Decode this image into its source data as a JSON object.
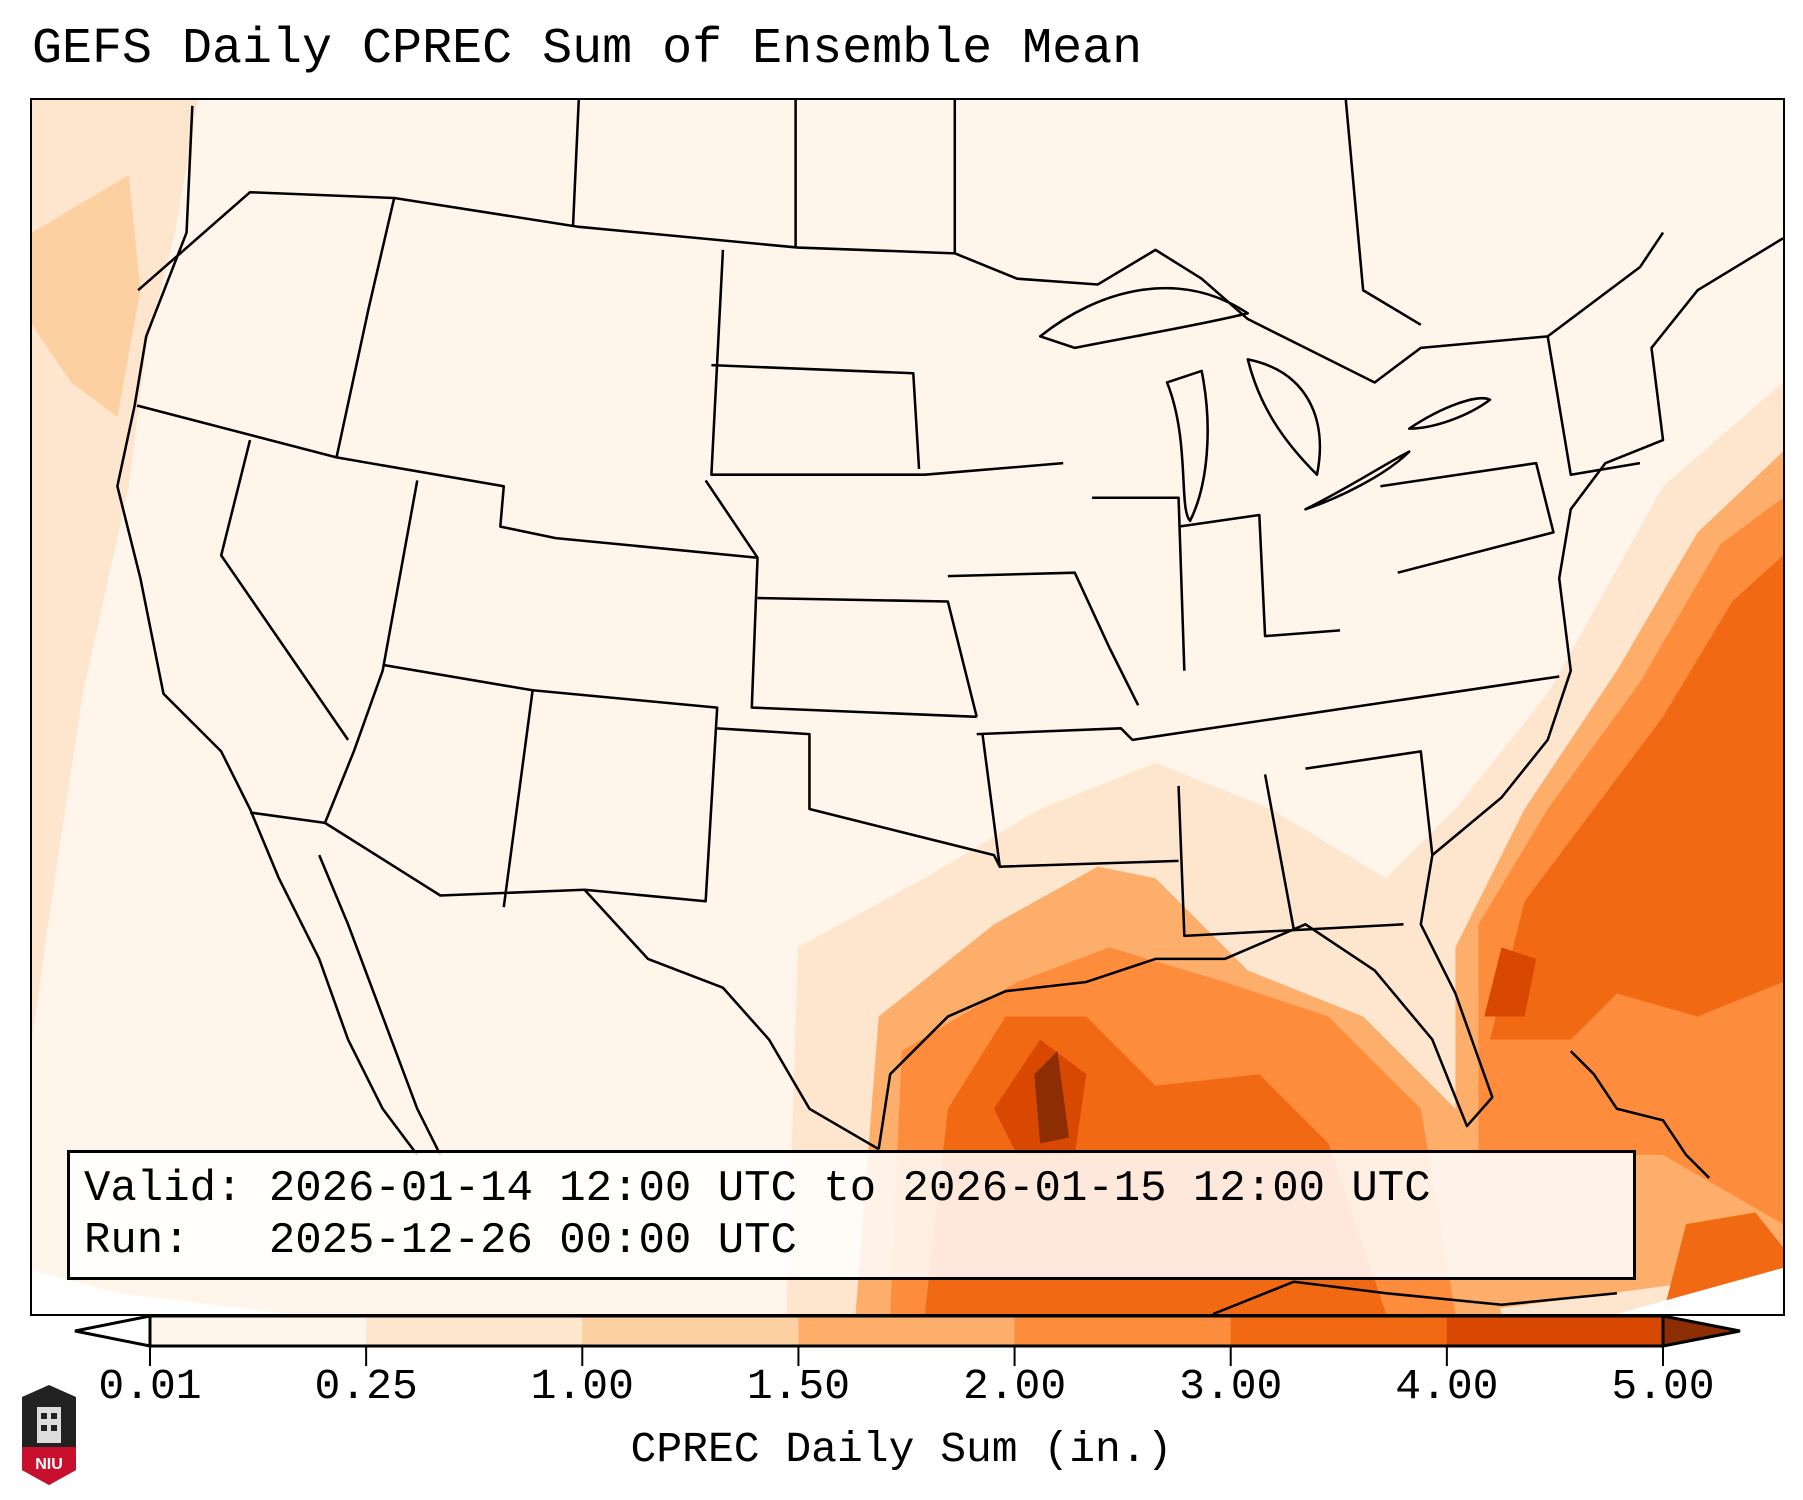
{
  "title": "GEFS Daily CPREC Sum of Ensemble Mean",
  "info": {
    "valid_line": "Valid: 2026-01-14 12:00 UTC to 2026-01-15 12:00 UTC",
    "run_line": "Run:   2025-12-26 00:00 UTC"
  },
  "colorbar": {
    "label": "CPREC Daily Sum (in.)",
    "ticks": [
      "0.01",
      "0.25",
      "1.00",
      "1.50",
      "2.00",
      "3.00",
      "4.00",
      "5.00"
    ],
    "colors": [
      "#fff5eb",
      "#fee6ce",
      "#fdd0a2",
      "#fdae6b",
      "#fd8d3c",
      "#f16913",
      "#d94801"
    ],
    "under_color": "#ffffff",
    "over_color": "#8c2d04"
  },
  "logo": {
    "text": "NIU"
  }
}
